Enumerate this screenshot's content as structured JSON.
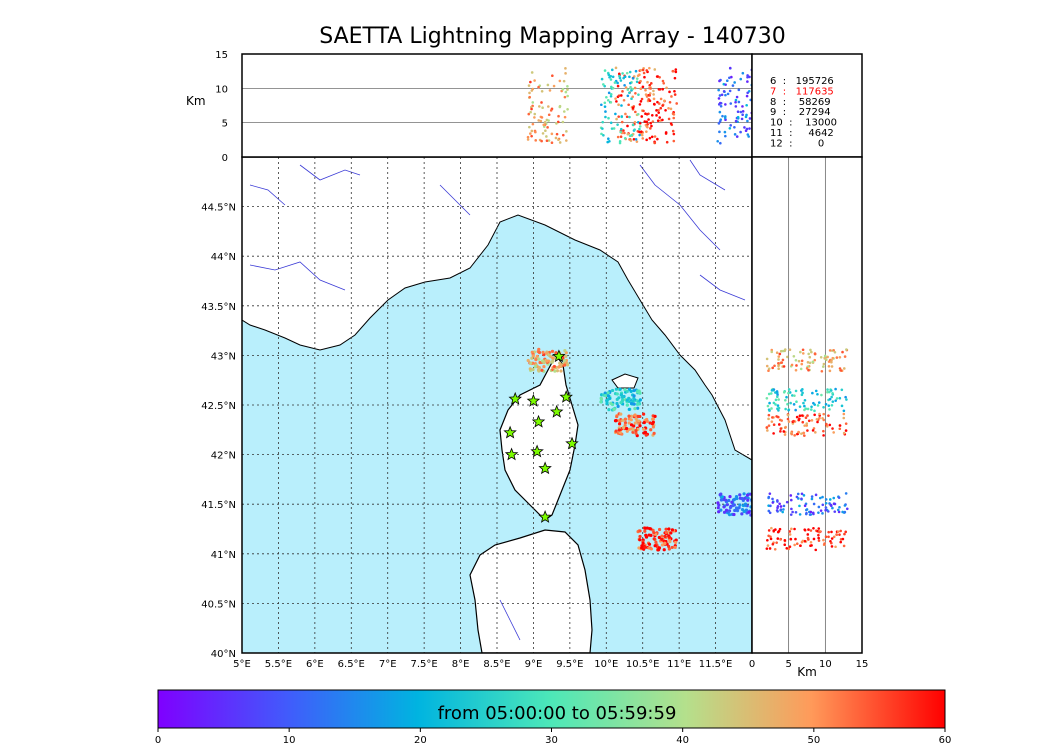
{
  "title": "SAETTA Lightning Mapping Array - 140730",
  "chart_data": {
    "type": "scatter",
    "main_map": {
      "x_ticks": [
        "5°E",
        "5.5°E",
        "6°E",
        "6.5°E",
        "7°E",
        "7.5°E",
        "8°E",
        "8.5°E",
        "9°E",
        "9.5°E",
        "10°E",
        "10.5°E",
        "11°E",
        "11.5°E"
      ],
      "y_ticks": [
        "40°N",
        "40.5°N",
        "41°N",
        "41.5°N",
        "42°N",
        "42.5°N",
        "43°N",
        "43.5°N",
        "44°N",
        "44.5°N"
      ],
      "xlim": [
        5,
        12
      ],
      "ylim": [
        40,
        45
      ],
      "stations": [
        {
          "lon": 8.75,
          "lat": 42.56
        },
        {
          "lon": 9.0,
          "lat": 42.54
        },
        {
          "lon": 9.45,
          "lat": 42.58
        },
        {
          "lon": 9.32,
          "lat": 42.43
        },
        {
          "lon": 9.07,
          "lat": 42.33
        },
        {
          "lon": 8.68,
          "lat": 42.22
        },
        {
          "lon": 9.53,
          "lat": 42.11
        },
        {
          "lon": 8.7,
          "lat": 42.0
        },
        {
          "lon": 9.05,
          "lat": 42.03
        },
        {
          "lon": 9.16,
          "lat": 41.86
        },
        {
          "lon": 9.16,
          "lat": 41.37
        },
        {
          "lon": 9.35,
          "lat": 42.99
        }
      ],
      "clusters": [
        {
          "lon": 10.4,
          "lat": 42.3,
          "minute": 55
        },
        {
          "lon": 10.2,
          "lat": 42.55,
          "minute": 25
        },
        {
          "lon": 9.2,
          "lat": 42.95,
          "minute": 48
        },
        {
          "lon": 10.7,
          "lat": 41.15,
          "minute": 57
        },
        {
          "lon": 11.8,
          "lat": 41.5,
          "minute": 12
        }
      ]
    },
    "top_panel": {
      "ylabel": "Km",
      "y_ticks": [
        "0",
        "5",
        "10",
        "15"
      ],
      "ylim": [
        0,
        15
      ]
    },
    "side_panel": {
      "xlabel": "Km",
      "x_ticks": [
        "0",
        "5",
        "10",
        "15"
      ],
      "xlim": [
        0,
        15
      ]
    },
    "station_counts": [
      {
        "label": "6  :   195726",
        "color": "#000000"
      },
      {
        "label": "7  :   117635",
        "color": "#ff0000"
      },
      {
        "label": "8  :    58269",
        "color": "#000000"
      },
      {
        "label": "9  :    27294",
        "color": "#000000"
      },
      {
        "label": "10  :    13000",
        "color": "#000000"
      },
      {
        "label": "11  :     4642",
        "color": "#000000"
      },
      {
        "label": "12  :        0",
        "color": "#000000"
      }
    ],
    "colorbar": {
      "label": "from 05:00:00 to 05:59:59",
      "ticks": [
        "0",
        "10",
        "20",
        "30",
        "40",
        "50",
        "60"
      ],
      "range": [
        0,
        60
      ],
      "colormap": "rainbow"
    },
    "colors": {
      "sea": "#b9effc",
      "land": "#ffffff",
      "rivers": "#3b3bd6",
      "station_marker": "#7cfc00"
    }
  }
}
